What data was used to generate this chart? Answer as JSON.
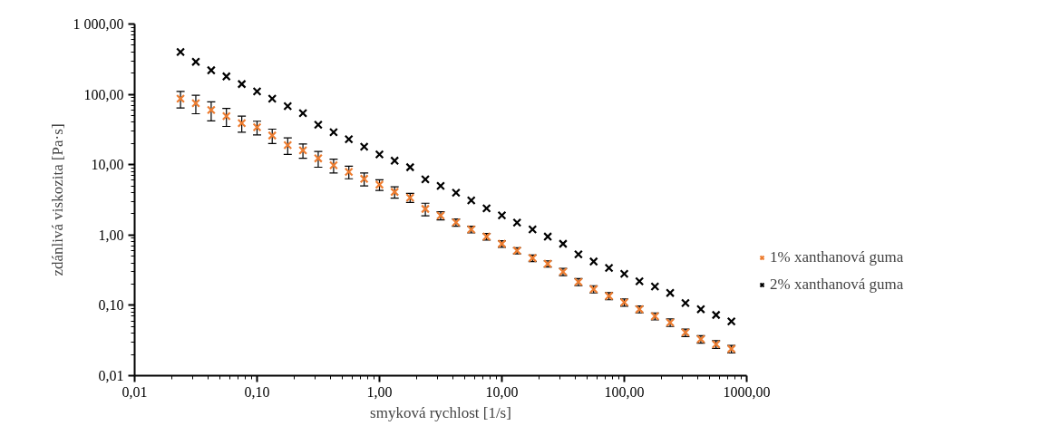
{
  "chart_data": {
    "type": "scatter",
    "xlabel": "smyková rychlost [1/s]",
    "ylabel": "zdánlivá viskozita [Pa·s]",
    "x": [
      0.0237,
      0.0316,
      0.0422,
      0.0562,
      0.075,
      0.1,
      0.133,
      0.178,
      0.237,
      0.316,
      0.422,
      0.562,
      0.75,
      1,
      1.33,
      1.78,
      2.37,
      3.16,
      4.22,
      5.62,
      7.5,
      10,
      13.3,
      17.8,
      23.7,
      31.6,
      42.2,
      56.2,
      75,
      100,
      133,
      178,
      237,
      316,
      422,
      562,
      750
    ],
    "series": [
      {
        "name": "1% xanthanová guma",
        "color": "#ed7d31",
        "values": [
          87,
          75,
          60,
          49,
          39,
          34,
          26,
          19,
          16,
          12.3,
          9.8,
          7.9,
          6.3,
          5.2,
          4.1,
          3.4,
          2.35,
          1.89,
          1.51,
          1.2,
          0.95,
          0.75,
          0.6,
          0.47,
          0.39,
          0.3,
          0.215,
          0.17,
          0.136,
          0.11,
          0.088,
          0.07,
          0.057,
          0.041,
          0.033,
          0.028,
          0.024
        ],
        "errors": [
          23,
          22,
          18,
          14,
          10,
          7.5,
          6,
          5,
          3.7,
          3.1,
          2.2,
          1.6,
          1.3,
          0.9,
          0.75,
          0.5,
          0.48,
          0.25,
          0.18,
          0.13,
          0.1,
          0.08,
          0.06,
          0.05,
          0.04,
          0.035,
          0.025,
          0.02,
          0.016,
          0.013,
          0.01,
          0.008,
          0.007,
          0.005,
          0.004,
          0.0035,
          0.003
        ]
      },
      {
        "name": "2% xanthanová guma",
        "color": "#000000",
        "values": [
          400,
          290,
          220,
          180,
          140,
          110,
          87,
          68,
          54,
          37,
          29,
          23,
          18,
          14,
          11.4,
          9.2,
          6.2,
          5,
          4,
          3.1,
          2.4,
          1.9,
          1.5,
          1.2,
          0.95,
          0.75,
          0.53,
          0.42,
          0.34,
          0.28,
          0.22,
          0.185,
          0.15,
          0.108,
          0.088,
          0.073,
          0.059
        ]
      }
    ],
    "log": "xy",
    "marker": "cross",
    "grid": false,
    "legend": "right",
    "xlim": [
      0.01,
      1000
    ],
    "ylim": [
      0.01,
      1000
    ],
    "xticks": [
      {
        "value": 0.01,
        "label": "0,01"
      },
      {
        "value": 0.1,
        "label": "0,10"
      },
      {
        "value": 1,
        "label": "1,00"
      },
      {
        "value": 10,
        "label": "10,00"
      },
      {
        "value": 100,
        "label": "100,00"
      },
      {
        "value": 1000,
        "label": "1000,00"
      }
    ],
    "yticks": [
      {
        "value": 0.01,
        "label": "0,01"
      },
      {
        "value": 0.1,
        "label": "0,10"
      },
      {
        "value": 1,
        "label": "1,00"
      },
      {
        "value": 10,
        "label": "10,00"
      },
      {
        "value": 100,
        "label": "100,00"
      },
      {
        "value": 1000,
        "label": "1 000,00"
      }
    ]
  }
}
